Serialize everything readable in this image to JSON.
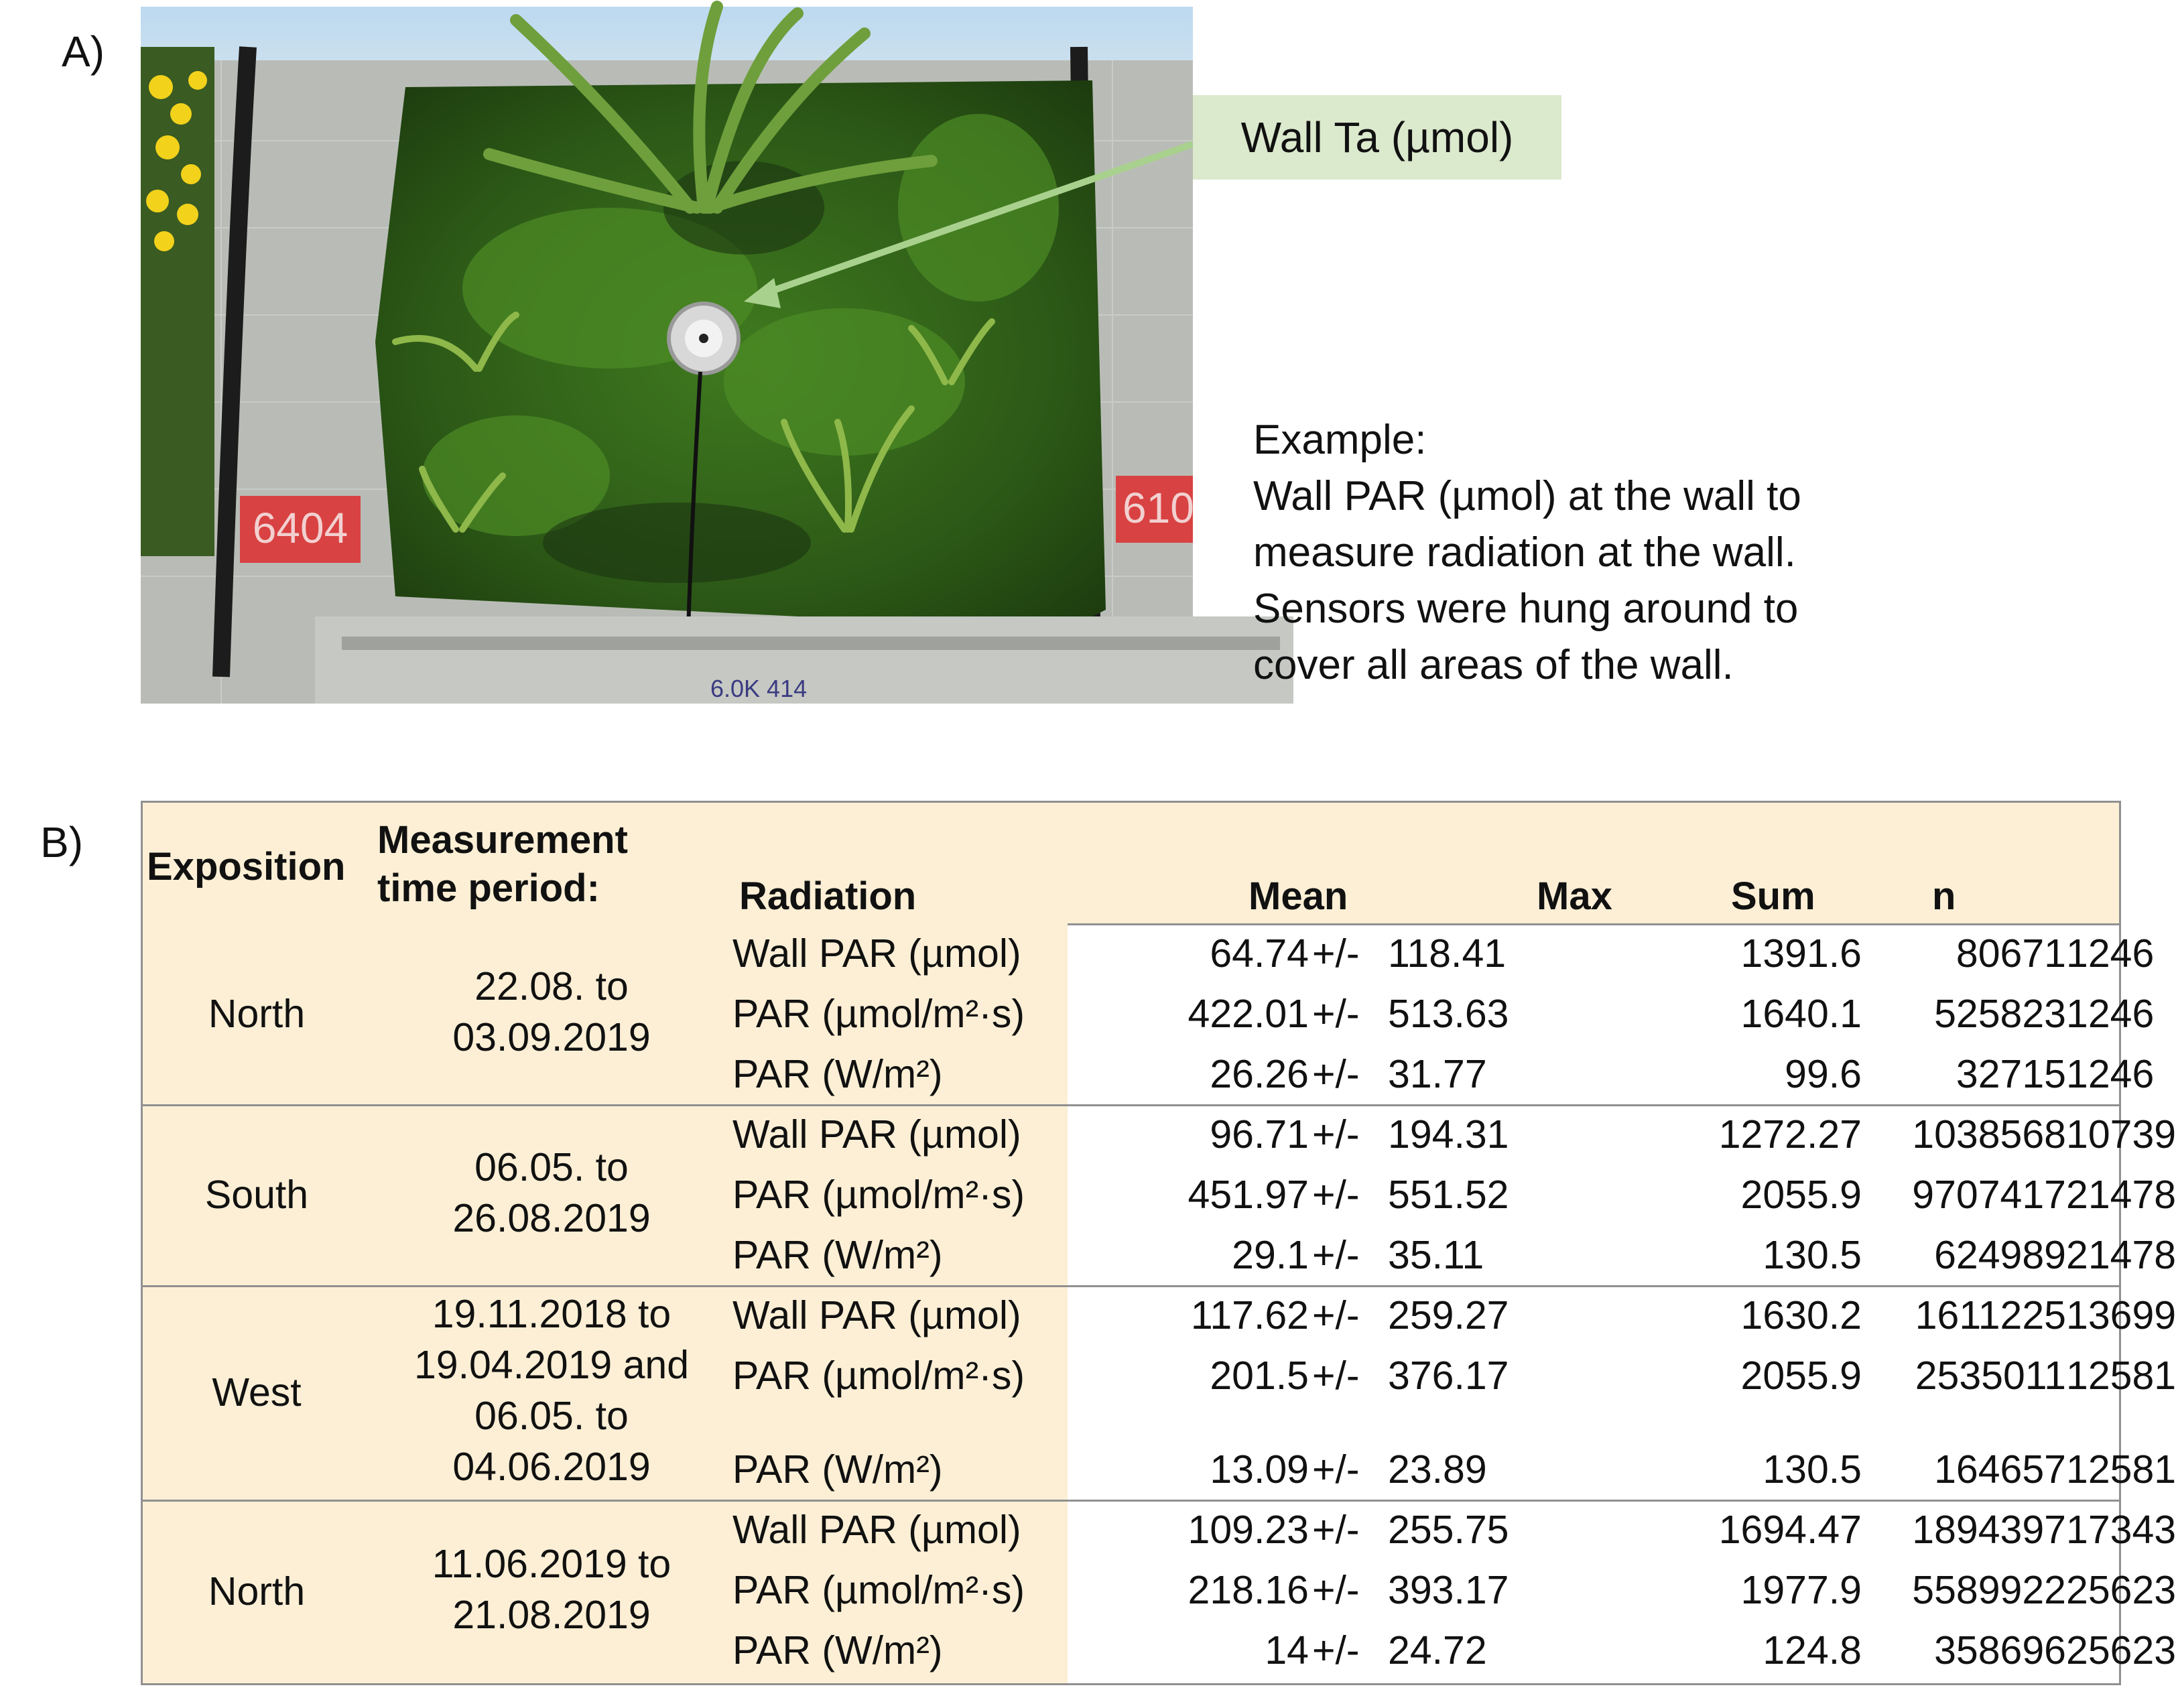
{
  "panels": {
    "a_label": "A)",
    "b_label": "B)"
  },
  "photo": {
    "sign_left": "6404",
    "sign_right": "610",
    "bottom_marks": "6.0K 414",
    "callout": "Wall Ta (µmol)"
  },
  "example": {
    "lines": [
      "Example:",
      "Wall PAR (µmol) at the wall to",
      "measure radiation at the wall.",
      "Sensors were hung around to",
      "cover all areas of the wall."
    ]
  },
  "table": {
    "headers": {
      "exposition": "Exposition",
      "period_line1": "Measurement",
      "period_line2": "time period:",
      "radiation": "Radiation",
      "mean": "Mean",
      "max": "Max",
      "sum": "Sum",
      "n": "n"
    },
    "groups": [
      {
        "exposition": "North",
        "period": [
          "22.08. to",
          "03.09.2019"
        ],
        "rows": [
          {
            "radiation": "Wall PAR (µmol)",
            "mean": "64.74",
            "pm": "+/-",
            "sd": "118.41",
            "max": "1391.6",
            "sum": "80671",
            "n": "1246"
          },
          {
            "radiation": "PAR (µmol/m²·s)",
            "mean": "422.01",
            "pm": "+/-",
            "sd": "513.63",
            "max": "1640.1",
            "sum": "525823",
            "n": "1246"
          },
          {
            "radiation": "PAR (W/m²)",
            "mean": "26.26",
            "pm": "+/-",
            "sd": "31.77",
            "max": "99.6",
            "sum": "32715",
            "n": "1246"
          }
        ]
      },
      {
        "exposition": "South",
        "period": [
          "06.05. to",
          "26.08.2019"
        ],
        "rows": [
          {
            "radiation": "Wall PAR (µmol)",
            "mean": "96.71",
            "pm": "+/-",
            "sd": "194.31",
            "max": "1272.27",
            "sum": "1038568",
            "n": "10739"
          },
          {
            "radiation": "PAR (µmol/m²·s)",
            "mean": "451.97",
            "pm": "+/-",
            "sd": "551.52",
            "max": "2055.9",
            "sum": "9707417",
            "n": "21478"
          },
          {
            "radiation": "PAR (W/m²)",
            "mean": "29.1",
            "pm": "+/-",
            "sd": "35.11",
            "max": "130.5",
            "sum": "624989",
            "n": "21478"
          }
        ]
      },
      {
        "exposition": "West",
        "period": [
          "19.11.2018 to",
          "19.04.2019 and",
          "06.05. to",
          "04.06.2019"
        ],
        "rows": [
          {
            "radiation": "Wall PAR (µmol)",
            "mean": "117.62",
            "pm": "+/-",
            "sd": "259.27",
            "max": "1630.2",
            "sum": "1611225",
            "n": "13699"
          },
          {
            "radiation": "PAR (µmol/m²·s)",
            "mean": "201.5",
            "pm": "+/-",
            "sd": "376.17",
            "max": "2055.9",
            "sum": "2535011",
            "n": "12581"
          },
          {
            "radiation": "PAR (W/m²)",
            "mean": "13.09",
            "pm": "+/-",
            "sd": "23.89",
            "max": "130.5",
            "sum": "164657",
            "n": "12581"
          }
        ]
      },
      {
        "exposition": "North",
        "period": [
          "11.06.2019 to",
          "21.08.2019"
        ],
        "rows": [
          {
            "radiation": "Wall PAR (µmol)",
            "mean": "109.23",
            "pm": "+/-",
            "sd": "255.75",
            "max": "1694.47",
            "sum": "1894397",
            "n": "17343"
          },
          {
            "radiation": "PAR (µmol/m²·s)",
            "mean": "218.16",
            "pm": "+/-",
            "sd": "393.17",
            "max": "1977.9",
            "sum": "5589922",
            "n": "25623"
          },
          {
            "radiation": "PAR (W/m²)",
            "mean": "14",
            "pm": "+/-",
            "sd": "24.72",
            "max": "124.8",
            "sum": "358696",
            "n": "25623"
          }
        ]
      }
    ]
  }
}
